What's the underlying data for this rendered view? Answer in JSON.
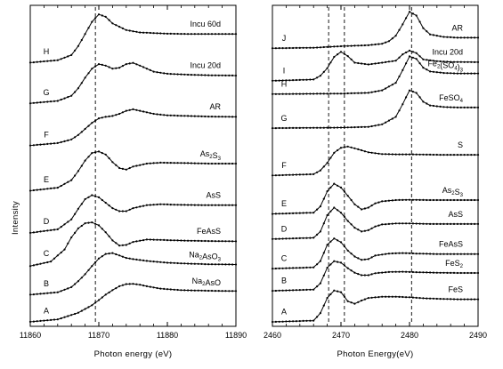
{
  "figure": {
    "ylabel": "Intensity"
  },
  "chart_data": [
    {
      "type": "line",
      "panel": "left",
      "xlabel": "Photon energy (eV)",
      "ylabel": "Intensity",
      "xlim": [
        11860,
        11890
      ],
      "xticks": [
        "11860",
        "11870",
        "11880",
        "11890"
      ],
      "vlines": [
        11869.5
      ],
      "series": [
        {
          "letter": "H",
          "name": "Incu 60d",
          "name_parts": [
            [
              "Incu 60d",
              false
            ]
          ],
          "offset": 8.6,
          "curve": "h60"
        },
        {
          "letter": "G",
          "name": "Incu 20d",
          "name_parts": [
            [
              "Incu 20d",
              false
            ]
          ],
          "offset": 7.25,
          "curve": "h20"
        },
        {
          "letter": "F",
          "name": "AR",
          "name_parts": [
            [
              "AR",
              false
            ]
          ],
          "offset": 5.85,
          "curve": "ar"
        },
        {
          "letter": "E",
          "name": "As2S3",
          "name_parts": [
            [
              "As",
              false
            ],
            [
              "2",
              true
            ],
            [
              "S",
              false
            ],
            [
              "3",
              true
            ]
          ],
          "offset": 4.35,
          "curve": "as2s3"
        },
        {
          "letter": "D",
          "name": "AsS",
          "name_parts": [
            [
              "AsS",
              false
            ]
          ],
          "offset": 2.95,
          "curve": "ass"
        },
        {
          "letter": "C",
          "name": "FeAsS",
          "name_parts": [
            [
              "FeAsS",
              false
            ]
          ],
          "offset": 1.85,
          "curve": "feass"
        },
        {
          "letter": "B",
          "name": "Na2AsO3",
          "name_parts": [
            [
              "Na",
              false
            ],
            [
              "2",
              true
            ],
            [
              "AsO",
              false
            ],
            [
              "3",
              true
            ]
          ],
          "offset": 0.9,
          "curve": "aso3"
        },
        {
          "letter": "A",
          "name": "Na2AsO",
          "name_parts": [
            [
              "Na",
              false
            ],
            [
              "2",
              true
            ],
            [
              "AsO",
              false
            ]
          ],
          "offset": 0.0,
          "curve": "aso4"
        }
      ],
      "curves": {
        "h60": {
          "x": [
            11860,
            11864,
            11866,
            11867,
            11868,
            11869,
            11870,
            11871,
            11872,
            11874,
            11876,
            11878,
            11880,
            11883,
            11886,
            11890
          ],
          "y": [
            0,
            0.08,
            0.25,
            0.55,
            0.95,
            1.35,
            1.6,
            1.52,
            1.3,
            1.08,
            1.0,
            0.98,
            0.96,
            0.95,
            0.95,
            0.95
          ]
        },
        "h20": {
          "x": [
            11860,
            11864,
            11866,
            11867,
            11868,
            11869,
            11870,
            11871,
            11872,
            11873,
            11874,
            11875,
            11876,
            11878,
            11880,
            11883,
            11886,
            11890
          ],
          "y": [
            0,
            0.08,
            0.25,
            0.5,
            0.85,
            1.15,
            1.3,
            1.25,
            1.15,
            1.18,
            1.3,
            1.34,
            1.25,
            1.05,
            0.98,
            0.95,
            0.93,
            0.92
          ]
        },
        "ar": {
          "x": [
            11860,
            11864,
            11866,
            11867,
            11868,
            11869,
            11870,
            11871,
            11872,
            11873,
            11874,
            11875,
            11876,
            11878,
            11880,
            11883,
            11886,
            11890
          ],
          "y": [
            0,
            0.08,
            0.2,
            0.35,
            0.55,
            0.75,
            0.9,
            0.95,
            0.98,
            1.05,
            1.15,
            1.2,
            1.15,
            1.05,
            1.0,
            0.98,
            0.96,
            0.95
          ]
        },
        "as2s3": {
          "x": [
            11860,
            11864,
            11866,
            11867,
            11868,
            11869,
            11870,
            11871,
            11872,
            11873,
            11874,
            11875,
            11877,
            11879,
            11882,
            11886,
            11890
          ],
          "y": [
            0,
            0.1,
            0.35,
            0.65,
            1.0,
            1.25,
            1.3,
            1.2,
            0.95,
            0.75,
            0.7,
            0.8,
            0.9,
            0.93,
            0.92,
            0.9,
            0.9
          ]
        },
        "ass": {
          "x": [
            11860,
            11864,
            11866,
            11867,
            11868,
            11869,
            11870,
            11871,
            11872,
            11873,
            11874,
            11875,
            11877,
            11879,
            11882,
            11886,
            11890
          ],
          "y": [
            0,
            0.12,
            0.45,
            0.8,
            1.12,
            1.25,
            1.18,
            1.0,
            0.82,
            0.72,
            0.72,
            0.82,
            0.92,
            0.95,
            0.93,
            0.92,
            0.92
          ]
        },
        "feass": {
          "x": [
            11860,
            11863,
            11865,
            11866,
            11867,
            11868,
            11869,
            11870,
            11871,
            11872,
            11873,
            11874,
            11875,
            11877,
            11880,
            11883,
            11886,
            11890
          ],
          "y": [
            0,
            0.15,
            0.55,
            0.95,
            1.25,
            1.42,
            1.45,
            1.35,
            1.12,
            0.85,
            0.68,
            0.7,
            0.8,
            0.88,
            0.86,
            0.84,
            0.83,
            0.82
          ]
        },
        "aso3": {
          "x": [
            11860,
            11864,
            11866,
            11867,
            11868,
            11869,
            11870,
            11871,
            11872,
            11873,
            11874,
            11875,
            11877,
            11880,
            11883,
            11886,
            11890
          ],
          "y": [
            0,
            0.08,
            0.25,
            0.45,
            0.68,
            0.95,
            1.2,
            1.35,
            1.38,
            1.3,
            1.22,
            1.18,
            1.12,
            1.06,
            1.03,
            1.01,
            1.0
          ]
        },
        "aso4": {
          "x": [
            11860,
            11864,
            11867,
            11869,
            11870,
            11871,
            11872,
            11873,
            11874,
            11875,
            11876,
            11877,
            11879,
            11882,
            11886,
            11890
          ],
          "y": [
            0,
            0.08,
            0.3,
            0.55,
            0.72,
            0.9,
            1.05,
            1.18,
            1.25,
            1.26,
            1.23,
            1.18,
            1.1,
            1.05,
            1.03,
            1.02
          ]
        }
      }
    },
    {
      "type": "line",
      "panel": "right",
      "xlabel": "Photon Energy(eV)",
      "xlim": [
        2460,
        2490
      ],
      "xticks": [
        "2460",
        "2470",
        "2480",
        "2490"
      ],
      "vlines": [
        2468.2,
        2470.5,
        2480.3
      ],
      "series": [
        {
          "letter": "J",
          "name": "AR",
          "name_parts": [
            [
              "AR",
              false
            ]
          ],
          "offset": 9.25,
          "curve": "ar"
        },
        {
          "letter": "I",
          "name": "Incu 20d",
          "name_parts": [
            [
              "Incu 20d",
              false
            ]
          ],
          "offset": 8.15,
          "curve": "incu20"
        },
        {
          "letter": "H",
          "name": "Fe2(SO4)3",
          "name_parts": [
            [
              "Fe",
              false
            ],
            [
              "2",
              true
            ],
            [
              "(SO",
              false
            ],
            [
              "4",
              true
            ],
            [
              ")",
              false
            ],
            [
              "3",
              true
            ]
          ],
          "offset": 7.7,
          "curve": "feso4"
        },
        {
          "letter": "G",
          "name": "FeSO4",
          "name_parts": [
            [
              "FeSO",
              false
            ],
            [
              "4",
              true
            ]
          ],
          "offset": 6.55,
          "curve": "feso4"
        },
        {
          "letter": "F",
          "name": "S",
          "name_parts": [
            [
              "S",
              false
            ]
          ],
          "offset": 4.95,
          "curve": "s"
        },
        {
          "letter": "E",
          "name": "As2S3",
          "name_parts": [
            [
              "As",
              false
            ],
            [
              "2",
              true
            ],
            [
              "S",
              false
            ],
            [
              "3",
              true
            ]
          ],
          "offset": 3.65,
          "curve": "as2s3"
        },
        {
          "letter": "D",
          "name": "AsS",
          "name_parts": [
            [
              "AsS",
              false
            ]
          ],
          "offset": 2.8,
          "curve": "ass"
        },
        {
          "letter": "C",
          "name": "FeAsS",
          "name_parts": [
            [
              "FeAsS",
              false
            ]
          ],
          "offset": 1.8,
          "curve": "feass"
        },
        {
          "letter": "B",
          "name": "FeS2",
          "name_parts": [
            [
              "FeS",
              false
            ],
            [
              "2",
              true
            ]
          ],
          "offset": 1.05,
          "curve": "fes2"
        },
        {
          "letter": "A",
          "name": "FeS",
          "name_parts": [
            [
              "FeS",
              false
            ]
          ],
          "offset": 0.0,
          "curve": "fes"
        }
      ],
      "curves": {
        "ar": {
          "x": [
            2460,
            2466,
            2468,
            2470,
            2472,
            2474,
            2476,
            2477,
            2478,
            2479,
            2480,
            2481,
            2482,
            2483,
            2485,
            2487,
            2490
          ],
          "y": [
            0,
            0.02,
            0.05,
            0.08,
            0.1,
            0.12,
            0.18,
            0.28,
            0.5,
            0.95,
            1.45,
            1.3,
            0.8,
            0.55,
            0.45,
            0.42,
            0.42
          ]
        },
        "incu20": {
          "x": [
            2460,
            2466,
            2467,
            2468,
            2469,
            2470,
            2471,
            2472,
            2474,
            2476,
            2478,
            2479,
            2480,
            2481,
            2482,
            2484,
            2486,
            2490
          ],
          "y": [
            0,
            0.05,
            0.2,
            0.5,
            0.95,
            1.15,
            0.98,
            0.72,
            0.65,
            0.72,
            0.8,
            1.05,
            1.2,
            1.1,
            0.85,
            0.78,
            0.75,
            0.74
          ]
        },
        "feso4": {
          "x": [
            2460,
            2470,
            2474,
            2476,
            2478,
            2479,
            2480,
            2481,
            2482,
            2483,
            2485,
            2487,
            2490
          ],
          "y": [
            0,
            0.02,
            0.05,
            0.15,
            0.45,
            0.95,
            1.5,
            1.4,
            1.05,
            0.9,
            0.84,
            0.82,
            0.82
          ]
        },
        "s": {
          "x": [
            2460,
            2466,
            2467,
            2468,
            2469,
            2470,
            2471,
            2472,
            2474,
            2476,
            2478,
            2480,
            2482,
            2485,
            2490
          ],
          "y": [
            0,
            0.05,
            0.2,
            0.5,
            0.9,
            1.1,
            1.15,
            1.08,
            0.92,
            0.85,
            0.84,
            0.84,
            0.83,
            0.82,
            0.82
          ]
        },
        "as2s3": {
          "x": [
            2460,
            2466,
            2467,
            2468,
            2469,
            2470,
            2471,
            2472,
            2473,
            2474,
            2475,
            2476,
            2478,
            2480,
            2483,
            2486,
            2490
          ],
          "y": [
            0,
            0.05,
            0.3,
            0.9,
            1.2,
            1.05,
            0.72,
            0.38,
            0.18,
            0.25,
            0.42,
            0.5,
            0.55,
            0.56,
            0.55,
            0.55,
            0.55
          ]
        },
        "ass": {
          "x": [
            2460,
            2466,
            2467,
            2468,
            2469,
            2470,
            2471,
            2472,
            2473,
            2474,
            2475,
            2476,
            2478,
            2480,
            2483,
            2486,
            2490
          ],
          "y": [
            0,
            0.05,
            0.3,
            0.95,
            1.25,
            1.05,
            0.72,
            0.45,
            0.3,
            0.35,
            0.5,
            0.58,
            0.62,
            0.62,
            0.6,
            0.6,
            0.6
          ]
        },
        "feass": {
          "x": [
            2460,
            2466,
            2467,
            2468,
            2469,
            2470,
            2471,
            2472,
            2473,
            2474,
            2475,
            2477,
            2479,
            2481,
            2484,
            2487,
            2490
          ],
          "y": [
            0,
            0.05,
            0.3,
            0.95,
            1.2,
            1.05,
            0.72,
            0.48,
            0.35,
            0.38,
            0.52,
            0.6,
            0.62,
            0.6,
            0.58,
            0.58,
            0.58
          ]
        },
        "fes2": {
          "x": [
            2460,
            2466,
            2467,
            2468,
            2469,
            2470,
            2471,
            2472,
            2473,
            2474,
            2475,
            2477,
            2479,
            2481,
            2484,
            2487,
            2490
          ],
          "y": [
            0,
            0.05,
            0.3,
            0.92,
            1.18,
            1.12,
            0.9,
            0.72,
            0.62,
            0.62,
            0.7,
            0.75,
            0.76,
            0.74,
            0.72,
            0.71,
            0.71
          ]
        },
        "fes": {
          "x": [
            2460,
            2466,
            2467,
            2468,
            2469,
            2470,
            2471,
            2472,
            2473,
            2474,
            2476,
            2478,
            2480,
            2482,
            2484,
            2487,
            2490
          ],
          "y": [
            0,
            0.05,
            0.35,
            0.95,
            1.25,
            1.18,
            0.82,
            0.72,
            0.85,
            0.95,
            1.0,
            1.0,
            0.98,
            0.94,
            0.92,
            0.9,
            0.9
          ]
        }
      }
    }
  ]
}
